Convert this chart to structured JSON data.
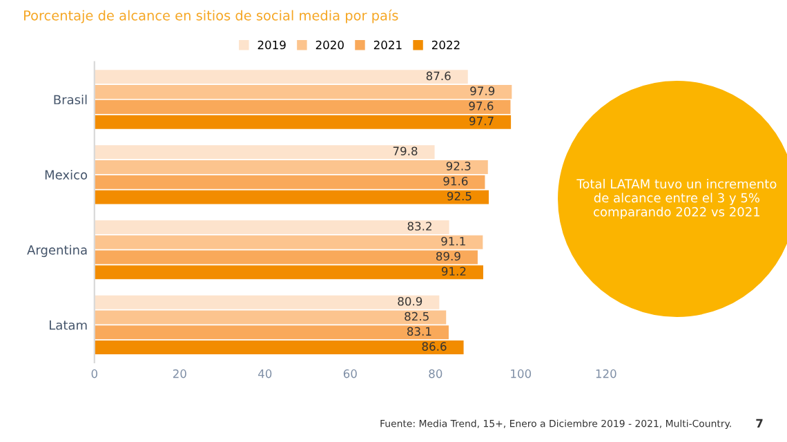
{
  "chart_data": {
    "type": "bar",
    "orientation": "horizontal",
    "title": "Porcentaje de alcance en sitios de social media por país",
    "categories": [
      "Brasil",
      "Mexico",
      "Argentina",
      "Latam"
    ],
    "series": [
      {
        "name": "2019",
        "color": "#fde3cc",
        "values": [
          87.6,
          79.8,
          83.2,
          80.9
        ]
      },
      {
        "name": "2020",
        "color": "#fcc48e",
        "values": [
          97.9,
          92.3,
          91.1,
          82.5
        ]
      },
      {
        "name": "2021",
        "color": "#f9a95a",
        "values": [
          97.6,
          91.6,
          89.9,
          83.1
        ]
      },
      {
        "name": "2022",
        "color": "#f28c00",
        "values": [
          97.7,
          92.5,
          91.2,
          86.6
        ]
      }
    ],
    "xlim": [
      0,
      120
    ],
    "xticks": [
      0,
      20,
      40,
      60,
      80,
      100,
      120
    ],
    "data_labels": true,
    "legend": "top",
    "grid": false,
    "annotations": [
      "Total LATAM tuvo un incremento de alcance entre el 3 y 5% comparando 2022 vs 2021",
      "Fuente: Media Trend, 15+, Enero a Diciembre 2019 - 2021, Multi-Country.",
      "7"
    ]
  }
}
